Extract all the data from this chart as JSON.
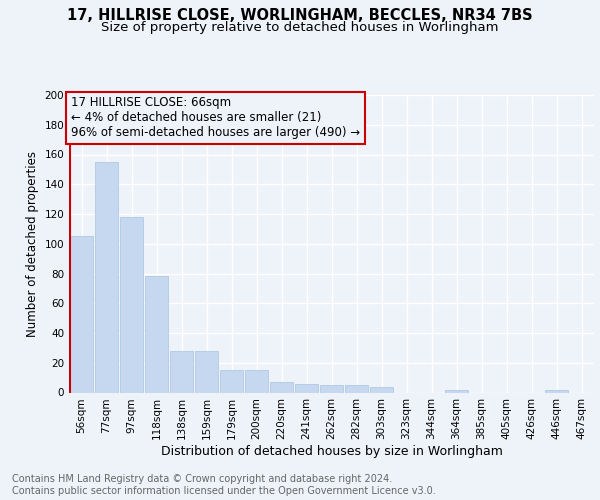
{
  "title_line1": "17, HILLRISE CLOSE, WORLINGHAM, BECCLES, NR34 7BS",
  "title_line2": "Size of property relative to detached houses in Worlingham",
  "xlabel": "Distribution of detached houses by size in Worlingham",
  "ylabel": "Number of detached properties",
  "bar_color": "#c5d8f0",
  "bar_edgecolor": "#a8c4e0",
  "annotation_box_edgecolor": "#cc0000",
  "annotation_text": "17 HILLRISE CLOSE: 66sqm\n← 4% of detached houses are smaller (21)\n96% of semi-detached houses are larger (490) →",
  "property_line_color": "#cc0000",
  "background_color": "#eef2f9",
  "grid_color": "#ffffff",
  "categories": [
    "56sqm",
    "77sqm",
    "97sqm",
    "118sqm",
    "138sqm",
    "159sqm",
    "179sqm",
    "200sqm",
    "220sqm",
    "241sqm",
    "262sqm",
    "282sqm",
    "303sqm",
    "323sqm",
    "344sqm",
    "364sqm",
    "385sqm",
    "405sqm",
    "426sqm",
    "446sqm",
    "467sqm"
  ],
  "values": [
    105,
    155,
    118,
    78,
    28,
    28,
    15,
    15,
    7,
    6,
    5,
    5,
    4,
    0,
    0,
    2,
    0,
    0,
    0,
    2,
    0
  ],
  "ylim_max": 200,
  "yticks": [
    0,
    20,
    40,
    60,
    80,
    100,
    120,
    140,
    160,
    180,
    200
  ],
  "footnote_line1": "Contains HM Land Registry data © Crown copyright and database right 2024.",
  "footnote_line2": "Contains public sector information licensed under the Open Government Licence v3.0.",
  "footnote_color": "#666666",
  "title_fontsize": 10.5,
  "subtitle_fontsize": 9.5,
  "xlabel_fontsize": 9,
  "ylabel_fontsize": 8.5,
  "tick_fontsize": 7.5,
  "annot_fontsize": 8.5,
  "footnote_fontsize": 7
}
